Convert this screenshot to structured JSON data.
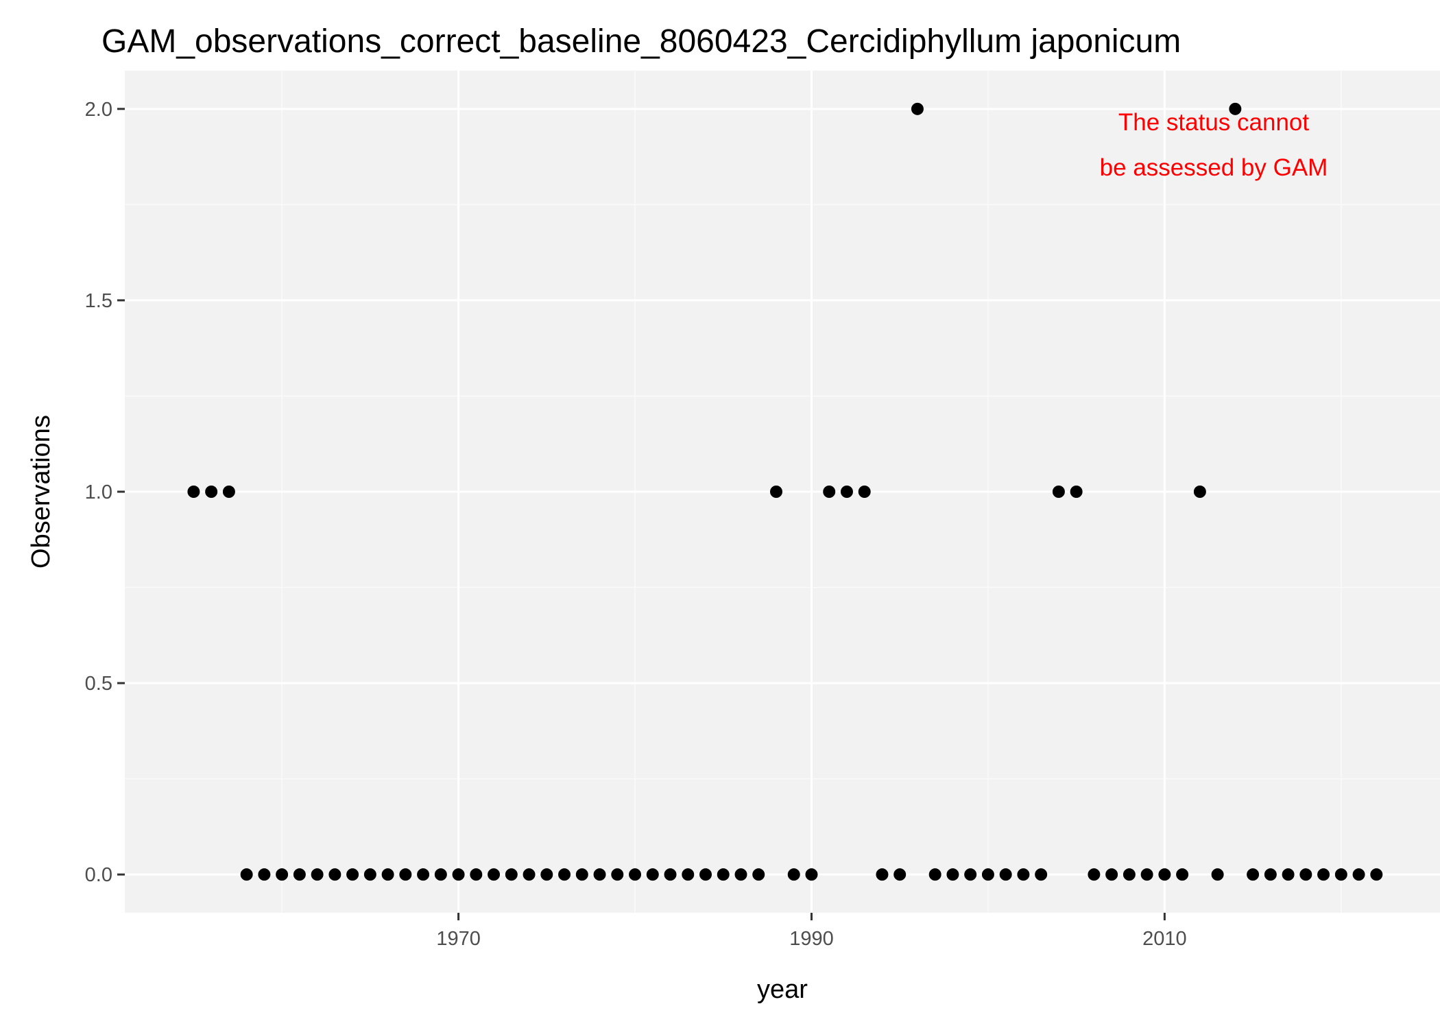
{
  "chart_data": {
    "type": "scatter",
    "title": "GAM_observations_correct_baseline_8060423_Cercidiphyllum japonicum",
    "xlabel": "year",
    "ylabel": "Observations",
    "xlim": [
      1951.1,
      2025.6
    ],
    "ylim": [
      -0.1,
      2.1
    ],
    "x_ticks": [
      1970,
      1990,
      2010
    ],
    "x_minor": [
      1960,
      1980,
      2000,
      2020
    ],
    "y_ticks": [
      0.0,
      0.5,
      1.0,
      1.5,
      2.0
    ],
    "y_tick_labels": [
      "0.0",
      "0.5",
      "1.0",
      "1.5",
      "2.0"
    ],
    "y_minor": [
      0.25,
      0.75,
      1.25,
      1.75
    ],
    "grid": true,
    "legend": "none",
    "points": [
      {
        "x": 1955,
        "y": 1
      },
      {
        "x": 1956,
        "y": 1
      },
      {
        "x": 1957,
        "y": 1
      },
      {
        "x": 1958,
        "y": 0
      },
      {
        "x": 1959,
        "y": 0
      },
      {
        "x": 1960,
        "y": 0
      },
      {
        "x": 1961,
        "y": 0
      },
      {
        "x": 1962,
        "y": 0
      },
      {
        "x": 1963,
        "y": 0
      },
      {
        "x": 1964,
        "y": 0
      },
      {
        "x": 1965,
        "y": 0
      },
      {
        "x": 1966,
        "y": 0
      },
      {
        "x": 1967,
        "y": 0
      },
      {
        "x": 1968,
        "y": 0
      },
      {
        "x": 1969,
        "y": 0
      },
      {
        "x": 1970,
        "y": 0
      },
      {
        "x": 1971,
        "y": 0
      },
      {
        "x": 1972,
        "y": 0
      },
      {
        "x": 1973,
        "y": 0
      },
      {
        "x": 1974,
        "y": 0
      },
      {
        "x": 1975,
        "y": 0
      },
      {
        "x": 1976,
        "y": 0
      },
      {
        "x": 1977,
        "y": 0
      },
      {
        "x": 1978,
        "y": 0
      },
      {
        "x": 1979,
        "y": 0
      },
      {
        "x": 1980,
        "y": 0
      },
      {
        "x": 1981,
        "y": 0
      },
      {
        "x": 1982,
        "y": 0
      },
      {
        "x": 1983,
        "y": 0
      },
      {
        "x": 1984,
        "y": 0
      },
      {
        "x": 1985,
        "y": 0
      },
      {
        "x": 1986,
        "y": 0
      },
      {
        "x": 1987,
        "y": 0
      },
      {
        "x": 1988,
        "y": 1
      },
      {
        "x": 1989,
        "y": 0
      },
      {
        "x": 1990,
        "y": 0
      },
      {
        "x": 1991,
        "y": 1
      },
      {
        "x": 1992,
        "y": 1
      },
      {
        "x": 1993,
        "y": 1
      },
      {
        "x": 1994,
        "y": 0
      },
      {
        "x": 1995,
        "y": 0
      },
      {
        "x": 1996,
        "y": 2
      },
      {
        "x": 1997,
        "y": 0
      },
      {
        "x": 1998,
        "y": 0
      },
      {
        "x": 1999,
        "y": 0
      },
      {
        "x": 2000,
        "y": 0
      },
      {
        "x": 2001,
        "y": 0
      },
      {
        "x": 2002,
        "y": 0
      },
      {
        "x": 2003,
        "y": 0
      },
      {
        "x": 2004,
        "y": 1
      },
      {
        "x": 2005,
        "y": 1
      },
      {
        "x": 2006,
        "y": 0
      },
      {
        "x": 2007,
        "y": 0
      },
      {
        "x": 2008,
        "y": 0
      },
      {
        "x": 2009,
        "y": 0
      },
      {
        "x": 2010,
        "y": 0
      },
      {
        "x": 2011,
        "y": 0
      },
      {
        "x": 2012,
        "y": 1
      },
      {
        "x": 2013,
        "y": 0
      },
      {
        "x": 2014,
        "y": 2
      },
      {
        "x": 2015,
        "y": 0
      },
      {
        "x": 2016,
        "y": 0
      },
      {
        "x": 2017,
        "y": 0
      },
      {
        "x": 2018,
        "y": 0
      },
      {
        "x": 2019,
        "y": 0
      },
      {
        "x": 2020,
        "y": 0
      },
      {
        "x": 2021,
        "y": 0
      },
      {
        "x": 2022,
        "y": 0
      }
    ],
    "annotation": {
      "lines": [
        "The status cannot",
        "be assessed by GAM"
      ],
      "color": "#ff0000",
      "placement": "top-right"
    }
  },
  "colors": {
    "panel_background": "#f2f2f2",
    "grid_major": "#ffffff",
    "grid_minor": "#fafafa",
    "point": "#000000",
    "tick_label": "#4d4d4d"
  }
}
